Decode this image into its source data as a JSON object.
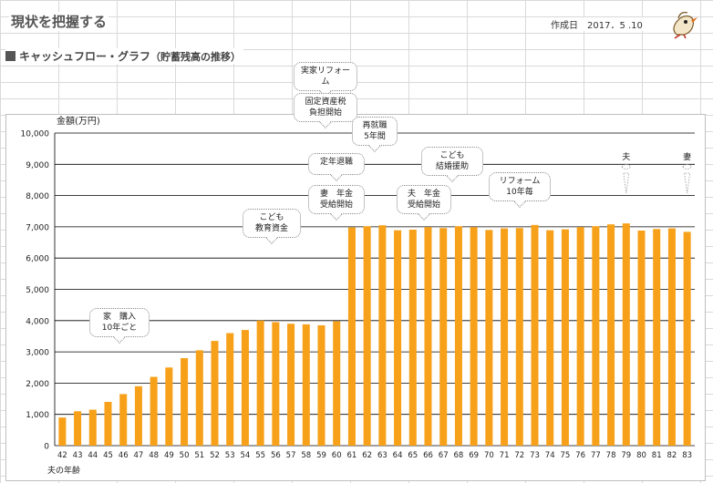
{
  "header": {
    "title": "現状を把握する",
    "created_label": "作成日",
    "created_date": "2017．5 .10"
  },
  "section": {
    "title": "キャッシュフロー・グラフ",
    "sub": "（貯蓄残高の推移）"
  },
  "colors": {
    "bar": "#F7A11A",
    "grid": "#000000"
  },
  "chart_data": {
    "type": "bar",
    "ylabel": "金額(万円)",
    "xlabel": "夫の年齢",
    "ylim": [
      0,
      10000
    ],
    "yticks": [
      "0",
      "1,000",
      "2,000",
      "3,000",
      "4,000",
      "5,000",
      "6,000",
      "7,000",
      "8,000",
      "9,000",
      "10,000"
    ],
    "categories": [
      "42",
      "43",
      "44",
      "45",
      "46",
      "47",
      "48",
      "49",
      "50",
      "51",
      "52",
      "53",
      "54",
      "55",
      "56",
      "57",
      "58",
      "59",
      "60",
      "61",
      "62",
      "63",
      "64",
      "65",
      "66",
      "67",
      "68",
      "69",
      "70",
      "71",
      "72",
      "73",
      "74",
      "75",
      "76",
      "77",
      "78",
      "79",
      "80",
      "81",
      "82",
      "83"
    ],
    "values": [
      900,
      1100,
      1150,
      1400,
      1650,
      1900,
      2200,
      2500,
      2800,
      3050,
      3350,
      3600,
      3700,
      4000,
      3950,
      3900,
      3880,
      3850,
      3980,
      6980,
      7020,
      7050,
      6890,
      6910,
      6990,
      6960,
      7020,
      6990,
      6900,
      6950,
      6960,
      7060,
      6890,
      6920,
      6990,
      7020,
      7080,
      7110,
      6880,
      6930,
      6950,
      6840
    ],
    "annotations": [
      {
        "text": "実家リフォーム",
        "x": "62"
      },
      {
        "text": "固定資産税\n負担開始",
        "x": "62"
      },
      {
        "text": "再就職\n5年間",
        "x": "63"
      },
      {
        "text": "定年退職",
        "x": "61"
      },
      {
        "text": "妻　年金\n受給開始",
        "x": "61"
      },
      {
        "text": "こども\n教育資金",
        "x": "55"
      },
      {
        "text": "夫　年金\n受給開始",
        "x": "65"
      },
      {
        "text": "こども\n結婚援助",
        "x": "68"
      },
      {
        "text": "リフォーム\n10年毎",
        "x": "72"
      },
      {
        "text": "家　購入\n10年ごと",
        "x": "47"
      }
    ],
    "persons": [
      {
        "text": "夫",
        "x": "79"
      },
      {
        "text": "妻",
        "x": "83"
      }
    ]
  }
}
